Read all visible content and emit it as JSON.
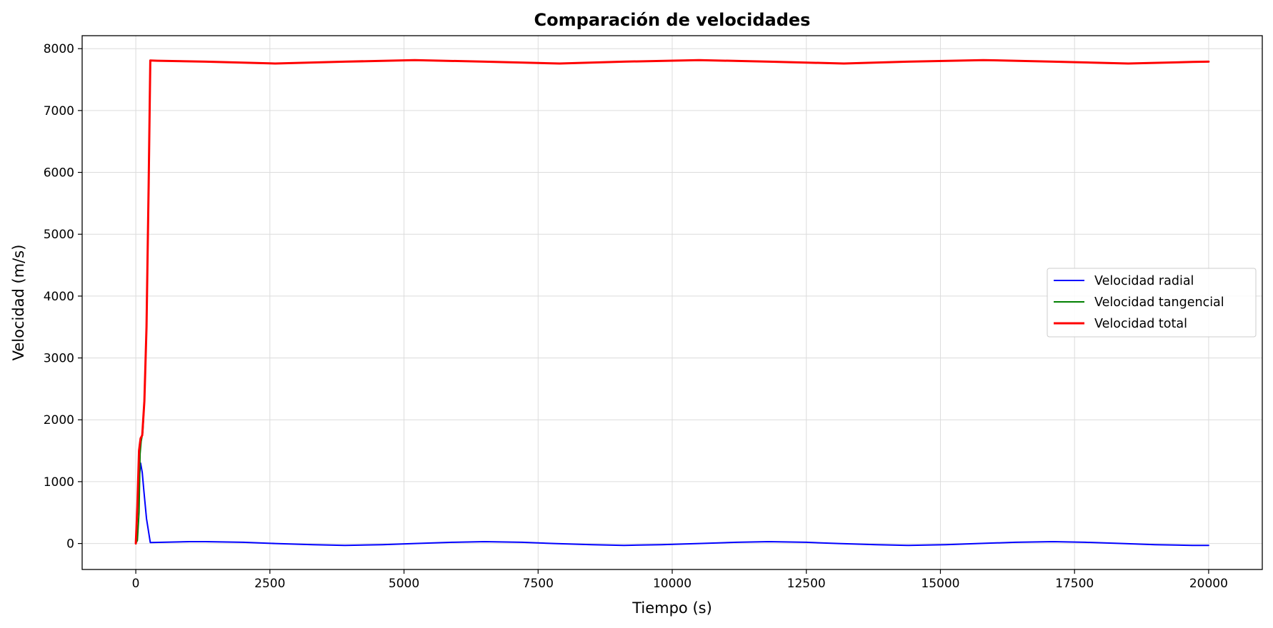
{
  "chart_data": {
    "type": "line",
    "title": "Comparación de velocidades",
    "xlabel": "Tiempo (s)",
    "ylabel": "Velocidad (m/s)",
    "xlim": [
      -1000,
      21000
    ],
    "ylim": [
      -420,
      8210
    ],
    "xticks": [
      0,
      2500,
      5000,
      7500,
      10000,
      12500,
      15000,
      17500,
      20000
    ],
    "yticks": [
      0,
      1000,
      2000,
      3000,
      4000,
      5000,
      6000,
      7000,
      8000
    ],
    "grid": true,
    "legend_position": "center-right",
    "series": [
      {
        "name": "Velocidad radial",
        "color": "#0000ff",
        "line_width": 2,
        "x": [
          0,
          30,
          60,
          90,
          120,
          150,
          200,
          270,
          500,
          1000,
          1300,
          2000,
          2600,
          3300,
          3900,
          4600,
          5200,
          5900,
          6500,
          7200,
          7800,
          8500,
          9100,
          9800,
          10500,
          11200,
          11800,
          12500,
          13100,
          13800,
          14400,
          15100,
          15700,
          16400,
          17100,
          17700,
          18400,
          19000,
          19700,
          20000
        ],
        "y": [
          0,
          500,
          1000,
          1300,
          1150,
          850,
          400,
          15,
          20,
          30,
          30,
          20,
          0,
          -20,
          -30,
          -20,
          0,
          20,
          30,
          20,
          0,
          -20,
          -30,
          -20,
          0,
          20,
          30,
          20,
          0,
          -20,
          -30,
          -20,
          0,
          20,
          30,
          20,
          0,
          -20,
          -30,
          -30
        ]
      },
      {
        "name": "Velocidad tangencial",
        "color": "#008000",
        "line_width": 2,
        "x": [
          0,
          30,
          60,
          80,
          100,
          130,
          160,
          200,
          240,
          270,
          400,
          1300,
          2600,
          3900,
          5200,
          6500,
          7900,
          9100,
          10500,
          11800,
          13200,
          14400,
          15800,
          17100,
          18500,
          19700,
          20000
        ],
        "y": [
          0,
          50,
          500,
          1450,
          1650,
          1800,
          2300,
          3500,
          5800,
          7810,
          7805,
          7790,
          7760,
          7790,
          7815,
          7790,
          7760,
          7790,
          7815,
          7790,
          7760,
          7790,
          7815,
          7790,
          7760,
          7785,
          7790
        ]
      },
      {
        "name": "Velocidad total",
        "color": "#ff0000",
        "line_width": 3,
        "x": [
          0,
          30,
          60,
          90,
          120,
          160,
          200,
          240,
          270,
          400,
          1300,
          2600,
          3900,
          5200,
          6500,
          7900,
          9100,
          10500,
          11800,
          13200,
          14400,
          15800,
          17100,
          18500,
          19700,
          20000
        ],
        "y": [
          0,
          600,
          1500,
          1700,
          1750,
          2300,
          3500,
          5800,
          7810,
          7805,
          7790,
          7760,
          7790,
          7815,
          7790,
          7760,
          7790,
          7815,
          7790,
          7760,
          7790,
          7815,
          7790,
          7760,
          7785,
          7790
        ]
      }
    ]
  }
}
